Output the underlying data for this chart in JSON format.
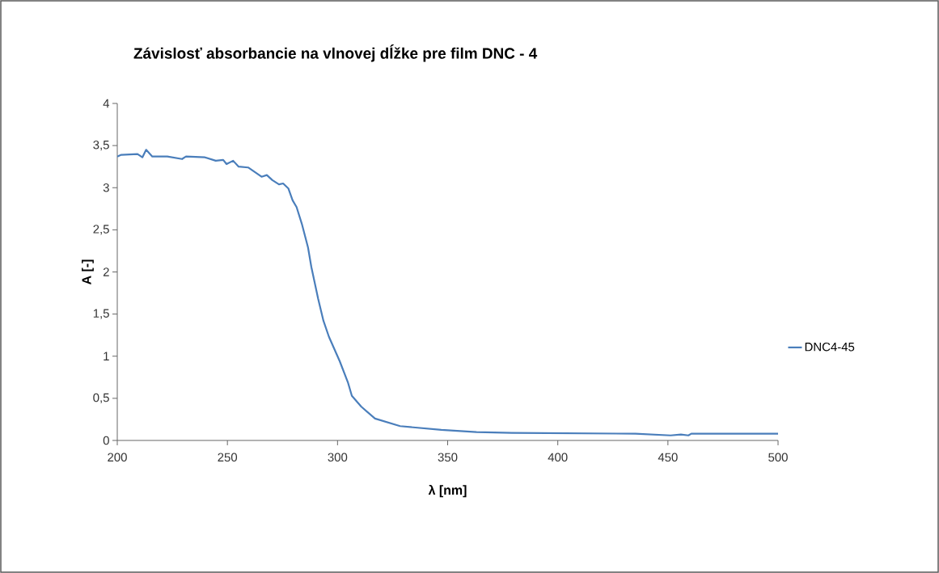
{
  "chart_data": {
    "type": "line",
    "title": "Závislosť absorbancie na vlnovej dĺžke pre film DNC - 4",
    "xlabel": "λ  [nm]",
    "ylabel": "A [-]",
    "xlim": [
      200,
      500
    ],
    "xticks": [
      200,
      250,
      300,
      350,
      400,
      450,
      500
    ],
    "ylim": [
      0,
      4
    ],
    "yticks": [
      0,
      {
        "value": 0.5,
        "label": "0,5"
      },
      1,
      {
        "value": 1.5,
        "label": "1,5"
      },
      2,
      {
        "value": 2.5,
        "label": "2,5"
      },
      3,
      {
        "value": 3.5,
        "label": "3,5"
      },
      4
    ],
    "legend": "right",
    "marker": "none",
    "line_style": "solid",
    "grid": false,
    "series": [
      {
        "name": "DNC4-45",
        "color": "#4a7ebb",
        "x": [
          200,
          201.8,
          209.2,
          211.4,
          213.1,
          215.9,
          222.7,
          229.4,
          231.2,
          239.8,
          244.7,
          248.1,
          249.6,
          252.6,
          255.1,
          259.4,
          265.5,
          267.9,
          270.4,
          273.4,
          275.3,
          277.7,
          279.6,
          281.4,
          283.8,
          286.6,
          288.1,
          291.2,
          293.6,
          296.1,
          301.0,
          304.7,
          306.5,
          310.8,
          317.0,
          328.4,
          347.1,
          363.1,
          379.1,
          435.2,
          451.2,
          455.9,
          459.3,
          460.6,
          500
        ],
        "values": [
          3.37,
          3.39,
          3.4,
          3.36,
          3.45,
          3.37,
          3.37,
          3.34,
          3.37,
          3.36,
          3.32,
          3.33,
          3.28,
          3.32,
          3.25,
          3.24,
          3.13,
          3.15,
          3.09,
          3.04,
          3.05,
          2.99,
          2.85,
          2.77,
          2.57,
          2.29,
          2.06,
          1.68,
          1.42,
          1.23,
          0.94,
          0.69,
          0.53,
          0.4,
          0.26,
          0.17,
          0.125,
          0.1,
          0.09,
          0.08,
          0.06,
          0.07,
          0.06,
          0.08,
          0.08
        ]
      }
    ]
  }
}
